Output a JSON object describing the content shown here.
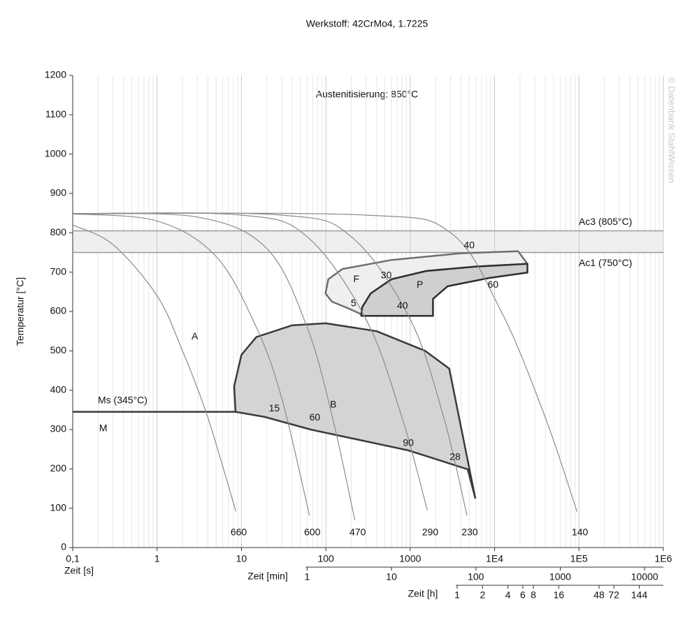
{
  "chart_data": {
    "type": "line",
    "title": "Werkstoff: 42CrMo4, 1.7225",
    "annotation": "Austenitisierung: 850°C",
    "watermark": "© Datenbank StahlWissen",
    "ylabel": "Temperatur [°C]",
    "xlabel": "Zeit [s]",
    "xscale": "log",
    "grid": true,
    "xlim": [
      0.1,
      1000000
    ],
    "ylim": [
      0,
      1200
    ],
    "yticks": [
      0,
      100,
      200,
      300,
      400,
      500,
      600,
      700,
      800,
      900,
      1000,
      1100,
      1200
    ],
    "xticks": [
      {
        "value": 0.1,
        "label": "0,1"
      },
      1,
      10,
      100,
      1000,
      {
        "value": 10000,
        "label": "1E4"
      },
      {
        "value": 100000,
        "label": "1E5"
      },
      {
        "value": 1000000,
        "label": "1E6"
      }
    ],
    "min_axis": {
      "label": "Zeit [min]",
      "ticks": [
        {
          "value": 60,
          "label": "1"
        },
        {
          "value": 600,
          "label": "10"
        },
        {
          "value": 6000,
          "label": "100"
        },
        {
          "value": 60000,
          "label": "1000"
        },
        {
          "value": 600000,
          "label": "10000"
        }
      ]
    },
    "hour_axis": {
      "label": "Zeit [h]",
      "ticks": [
        {
          "value": 3600,
          "label": "1"
        },
        {
          "value": 7200,
          "label": "2"
        },
        {
          "value": 14400,
          "label": "4"
        },
        {
          "value": 21600,
          "label": "6"
        },
        {
          "value": 28800,
          "label": "8"
        },
        {
          "value": 57600,
          "label": "16"
        },
        {
          "value": 172800,
          "label": "48"
        },
        {
          "value": 259200,
          "label": "72"
        },
        {
          "value": 518400,
          "label": "144"
        }
      ]
    },
    "hlines": [
      {
        "name": "Ac3 (805°C)",
        "value": 805
      },
      {
        "name": "Ac1 (750°C)",
        "value": 750
      }
    ],
    "ms_line": {
      "name": "Ms (345°C)",
      "x": [
        0.1,
        8.5
      ],
      "values": [
        345,
        345
      ]
    },
    "series": [
      {
        "name": "660",
        "color": "#8c8c8c",
        "x": [
          0.1,
          0.3,
          1,
          2,
          4,
          8.6
        ],
        "values": [
          820,
          770,
          640,
          500,
          330,
          92
        ]
      },
      {
        "name": "600",
        "color": "#8c8c8c",
        "x": [
          0.1,
          1,
          5,
          15,
          30,
          64
        ],
        "values": [
          848,
          830,
          740,
          560,
          380,
          82
        ]
      },
      {
        "name": "470",
        "color": "#8c8c8c",
        "x": [
          0.1,
          3,
          20,
          60,
          120,
          221
        ],
        "values": [
          848,
          840,
          760,
          560,
          330,
          69
        ]
      },
      {
        "name": "290",
        "color": "#8c8c8c",
        "x": [
          0.1,
          10,
          60,
          300,
          800,
          1600
        ],
        "values": [
          849,
          845,
          790,
          580,
          330,
          94
        ]
      },
      {
        "name": "230",
        "color": "#8c8c8c",
        "x": [
          0.1,
          30,
          200,
          1000,
          2500,
          4700
        ],
        "values": [
          849,
          845,
          790,
          580,
          330,
          82
        ]
      },
      {
        "name": "140",
        "color": "#8c8c8c",
        "x": [
          0.1,
          300,
          3000,
          12000,
          40000,
          95000
        ],
        "values": [
          849,
          845,
          800,
          600,
          330,
          91
        ]
      }
    ],
    "regions": [
      {
        "name": "F",
        "fill": "#efefef",
        "stroke": "#6e6e6e",
        "x": [
          19000,
          4000,
          600,
          157,
          107,
          99,
          118,
          190,
          263,
          270,
          340,
          600,
          1550,
          5900,
          24500
        ],
        "values": [
          753,
          748,
          731,
          708,
          682,
          646,
          625,
          607,
          593,
          611,
          646,
          682,
          703,
          714,
          721
        ]
      },
      {
        "name": "P",
        "fill": "#cfcfcf",
        "stroke": "#2e2e2e",
        "x": [
          263,
          270,
          340,
          600,
          1550,
          5900,
          24500,
          24500,
          8500,
          2770,
          1860,
          1860,
          263
        ],
        "values": [
          589,
          611,
          646,
          682,
          703,
          714,
          721,
          699,
          685,
          664,
          632,
          589,
          589
        ]
      },
      {
        "name": "B",
        "fill": "#d4d4d4",
        "stroke": "#3a3a3a",
        "x": [
          8.5,
          8.2,
          10,
          15,
          40,
          100,
          400,
          1500,
          2900,
          5900,
          4800,
          955,
          66,
          19,
          8.5
        ],
        "values": [
          345,
          410,
          490,
          535,
          565,
          570,
          550,
          500,
          455,
          126,
          199,
          247,
          300,
          332,
          345
        ]
      }
    ],
    "labels": [
      {
        "text": "40",
        "x": 5000,
        "y": 767
      },
      {
        "text": "30",
        "x": 520,
        "y": 691
      },
      {
        "text": "P",
        "x": 1300,
        "y": 667
      },
      {
        "text": "60",
        "x": 9600,
        "y": 667
      },
      {
        "text": "5",
        "x": 213,
        "y": 620
      },
      {
        "text": "40",
        "x": 810,
        "y": 614
      },
      {
        "text": "A",
        "x": 2.8,
        "y": 536
      },
      {
        "text": "15",
        "x": 24.5,
        "y": 353
      },
      {
        "text": "60",
        "x": 74,
        "y": 330
      },
      {
        "text": "90",
        "x": 950,
        "y": 265
      },
      {
        "text": "28",
        "x": 3400,
        "y": 229
      },
      {
        "text": "M",
        "x": 0.23,
        "y": 302
      }
    ]
  }
}
